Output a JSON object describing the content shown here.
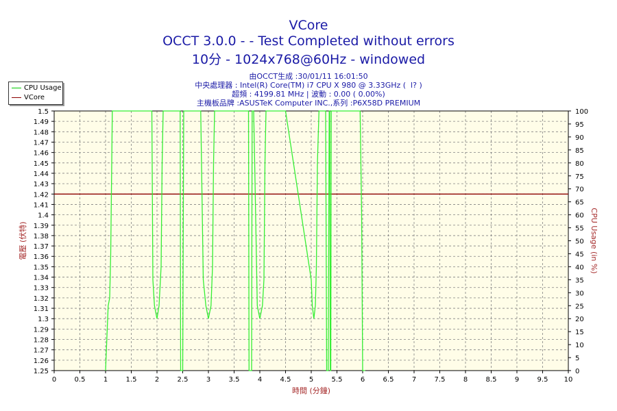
{
  "header": {
    "title": "VCore",
    "subtitle1": "OCCT 3.0.0 -  - Test Completed without errors",
    "subtitle2": "10分 - 1024x768@60Hz - windowed",
    "info1": "由OCCT生成 :30/01/11 16:01:50",
    "info2": "中央處理器 : Intel(R) Core(TM) i7 CPU X 980 @ 3.33GHz (  l? )",
    "info3": "超頻 : 4199.81 MHz | 波動 : 0.00 ( 0.00%)",
    "info4": "主機板品牌 :ASUSTeK Computer INC.,系列 :P6X58D PREMIUM"
  },
  "legend": {
    "items": [
      {
        "label": "CPU Usage",
        "color": "#00cc00"
      },
      {
        "label": "VCore",
        "color": "#8b0000"
      }
    ]
  },
  "chart_data": {
    "type": "line",
    "xlabel": "時間 (分鐘)",
    "ylabel": "電壓 (伏特)",
    "y2label": "CPU Usage (in %)",
    "xlim": [
      0,
      10
    ],
    "ylim": [
      1.25,
      1.5
    ],
    "y2lim": [
      0,
      100
    ],
    "grid": true,
    "legend_position": "top-left",
    "x_ticks": [
      "0",
      "0.5",
      "1",
      "1.5",
      "2",
      "2.5",
      "3",
      "3.5",
      "4",
      "4.5",
      "5",
      "5.5",
      "6",
      "6.5",
      "7",
      "7.5",
      "8",
      "8.5",
      "9",
      "9.5",
      "10"
    ],
    "y_ticks": [
      "1.25",
      "1.26",
      "1.27",
      "1.28",
      "1.29",
      "1.3",
      "1.31",
      "1.32",
      "1.33",
      "1.34",
      "1.35",
      "1.36",
      "1.37",
      "1.38",
      "1.39",
      "1.4",
      "1.41",
      "1.42",
      "1.43",
      "1.44",
      "1.45",
      "1.46",
      "1.47",
      "1.48",
      "1.49",
      "1.5"
    ],
    "y2_ticks": [
      "0",
      "5",
      "10",
      "15",
      "20",
      "25",
      "30",
      "35",
      "40",
      "45",
      "50",
      "55",
      "60",
      "65",
      "70",
      "75",
      "80",
      "85",
      "90",
      "95",
      "100"
    ],
    "series": [
      {
        "name": "VCore",
        "axis": "left",
        "color": "#8b0000",
        "x": [
          0,
          10
        ],
        "y": [
          1.42,
          1.42
        ]
      },
      {
        "name": "CPU Usage",
        "axis": "right",
        "color": "#33ee33",
        "x": [
          1.0,
          1.02,
          1.05,
          1.08,
          1.1,
          1.12,
          1.13,
          1.14,
          1.15,
          1.16,
          1.18,
          1.9,
          1.92,
          1.95,
          2.0,
          2.04,
          2.08,
          2.1,
          2.12,
          2.15,
          2.45,
          2.46,
          2.48,
          2.5,
          2.52,
          2.53,
          2.55,
          2.85,
          2.9,
          2.95,
          3.0,
          3.05,
          3.08,
          3.1,
          3.12,
          3.15,
          3.6,
          3.7,
          3.75,
          3.78,
          3.79,
          3.8,
          3.82,
          3.84,
          3.85,
          3.87,
          3.88,
          3.9,
          3.95,
          4.0,
          4.05,
          4.08,
          4.1,
          4.12,
          4.15,
          4.2,
          4.5,
          5.0,
          5.02,
          5.05,
          5.08,
          5.1,
          5.12,
          5.15,
          5.25,
          5.28,
          5.3,
          5.32,
          5.33,
          5.35,
          5.36,
          5.37,
          5.38,
          5.39,
          5.4,
          5.95,
          5.98,
          6.0,
          6.02,
          6.05
        ],
        "y": [
          0,
          10,
          25,
          28,
          45,
          80,
          100,
          100,
          100,
          100,
          100,
          100,
          35,
          25,
          20,
          25,
          40,
          80,
          100,
          100,
          100,
          0,
          0,
          0,
          100,
          100,
          100,
          100,
          35,
          25,
          20,
          25,
          40,
          80,
          100,
          100,
          100,
          100,
          100,
          100,
          0,
          0,
          0,
          0,
          100,
          100,
          100,
          80,
          25,
          20,
          25,
          35,
          80,
          100,
          100,
          100,
          100,
          35,
          25,
          20,
          25,
          40,
          80,
          100,
          100,
          100,
          0,
          0,
          0,
          100,
          100,
          0,
          0,
          100,
          100,
          100,
          60,
          0,
          0,
          0
        ]
      }
    ]
  }
}
